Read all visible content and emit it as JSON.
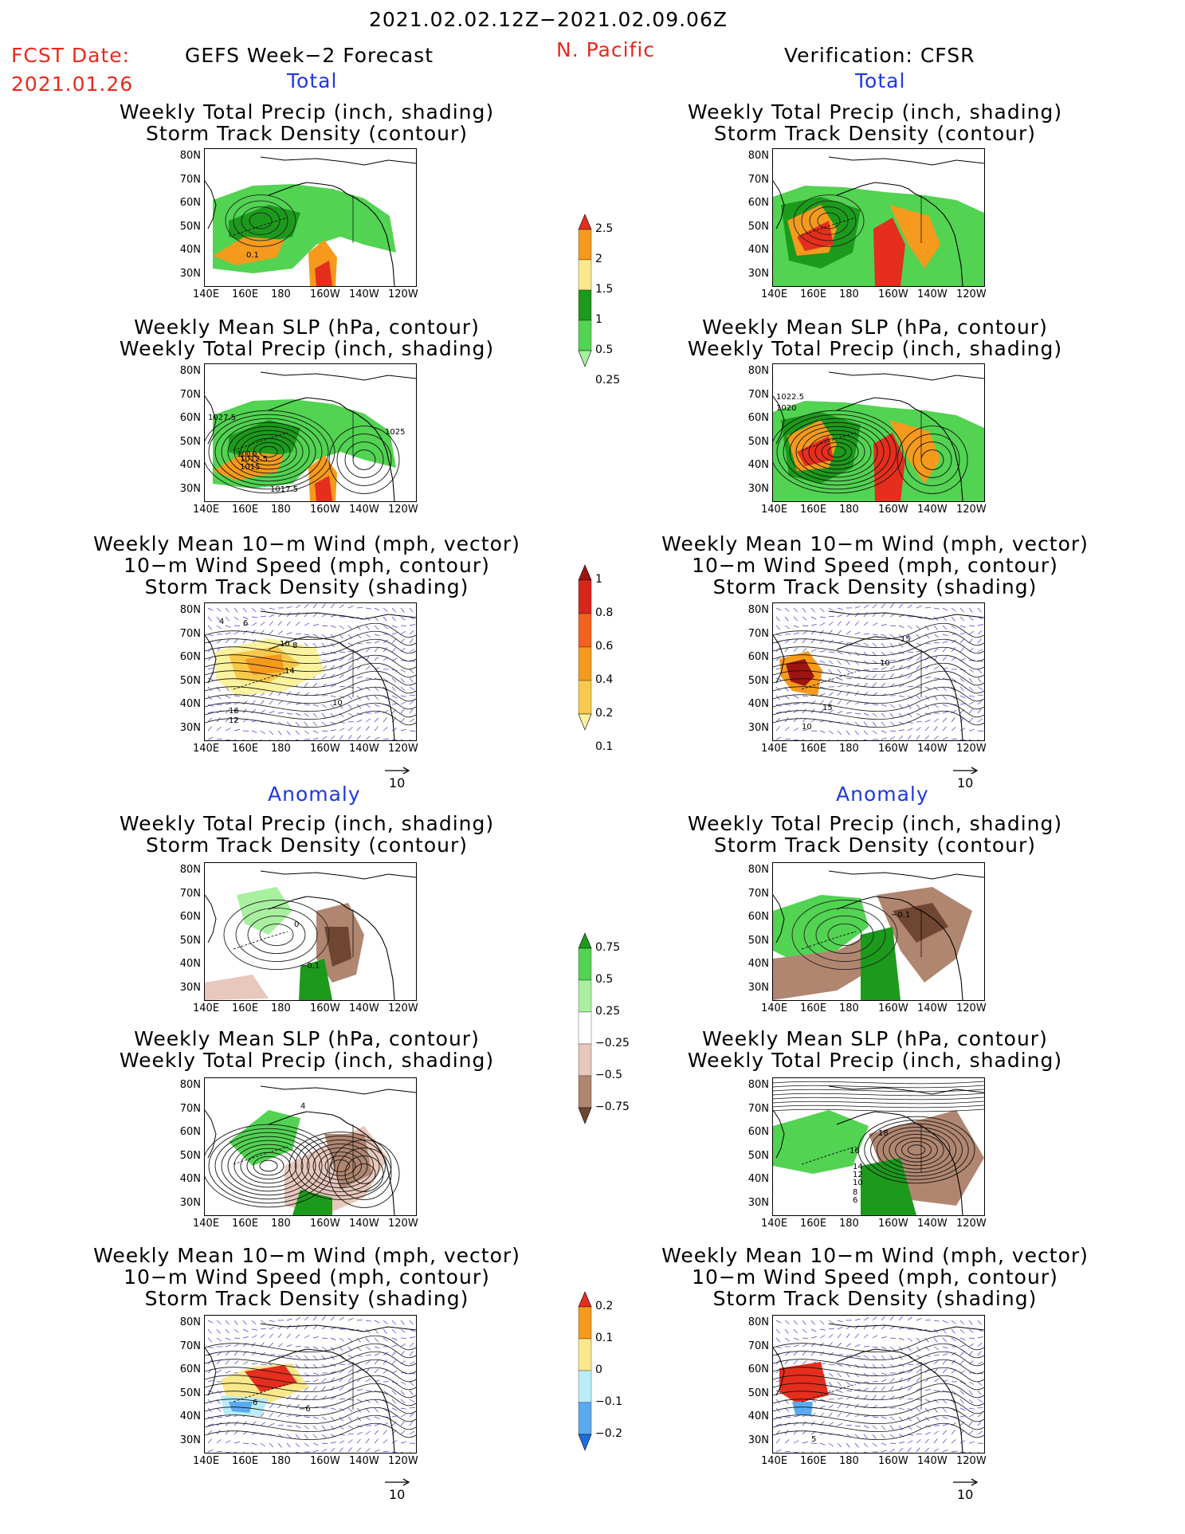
{
  "header": {
    "date_range": "2021.02.02.12Z−2021.02.09.06Z",
    "fcst_label": "FCST Date:",
    "fcst_date": "2021.01.26",
    "left_title": "GEFS Week−2 Forecast",
    "region": "N. Pacific",
    "right_title": "Verification: CFSR"
  },
  "sections": {
    "total": "Total",
    "anomaly": "Anomaly"
  },
  "panel_titles": {
    "precip_storm": [
      "Weekly Total Precip (inch, shading)",
      "Storm Track Density (contour)"
    ],
    "slp_precip": [
      "Weekly Mean SLP (hPa, contour)",
      "Weekly Total Precip (inch, shading)"
    ],
    "wind_storm": [
      "Weekly Mean 10−m Wind (mph, vector)",
      "10−m Wind Speed (mph, contour)",
      "Storm Track Density (shading)"
    ]
  },
  "axes": {
    "lat_ticks": [
      "80N",
      "70N",
      "60N",
      "50N",
      "40N",
      "30N"
    ],
    "lon_ticks": [
      "140E",
      "160E",
      "180",
      "160W",
      "140W",
      "120W"
    ]
  },
  "vector_key": "10",
  "contour_labels": {
    "p1": [
      "0.1"
    ],
    "p2": [
      "1027.5",
      "1025",
      "1010",
      "1012.5",
      "1015",
      "1017.5"
    ],
    "p3": [
      "4",
      "6",
      "10",
      "8",
      "14",
      "10",
      "16",
      "12"
    ],
    "p4": [
      "0",
      "−0.1"
    ],
    "p5": [
      "4"
    ],
    "p6": [
      "6",
      "−6"
    ],
    "q1": [],
    "q2": [
      "1022.5",
      "1020"
    ],
    "q3": [
      "15",
      "10",
      "15",
      "10"
    ],
    "q4": [
      "−0.1"
    ],
    "q5": [
      "18",
      "16",
      "14",
      "12",
      "10",
      "8",
      "6"
    ],
    "q6": [
      "5"
    ]
  },
  "colorbars": {
    "precip_total": {
      "labels": [
        "2.5",
        "2",
        "1.5",
        "1",
        "0.5",
        "0.25"
      ],
      "colors": [
        "#e52e1d",
        "#f59a1c",
        "#fae88c",
        "#1c9a1c",
        "#52d352",
        "#a8f0a0"
      ]
    },
    "storm_total": {
      "labels": [
        "1",
        "0.8",
        "0.6",
        "0.4",
        "0.2",
        "0.1"
      ],
      "colors": [
        "#9e1410",
        "#d9261c",
        "#f2621e",
        "#f59a1c",
        "#f8c94a",
        "#fbf2a0"
      ]
    },
    "precip_anom": {
      "labels": [
        "0.75",
        "0.5",
        "0.25",
        "−0.25",
        "−0.5",
        "−0.75"
      ],
      "colors": [
        "#1c9a1c",
        "#52d352",
        "#a8f0a0",
        "#ffffff",
        "#e8c8bc",
        "#b08670",
        "#6e4632"
      ]
    },
    "storm_anom": {
      "labels": [
        "0.2",
        "0.1",
        "0",
        "−0.1",
        "−0.2"
      ],
      "colors": [
        "#e52e1d",
        "#f59a1c",
        "#fae88c",
        "#b8ecf8",
        "#5aaaf0",
        "#1c6ee0"
      ]
    }
  },
  "colors": {
    "title_red": "#e8291c",
    "section_blue": "#1f39e0",
    "vector_blue": "#3c3ccf"
  }
}
